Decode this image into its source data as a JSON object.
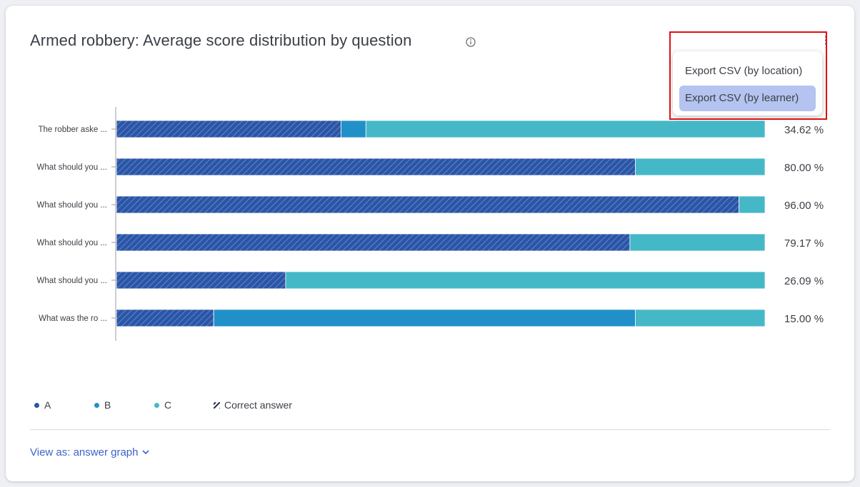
{
  "title": "Armed robbery: Average score distribution by question",
  "menu": {
    "items": [
      "Export CSV (by location)",
      "Export CSV (by learner)"
    ],
    "active_index": 1
  },
  "legend": {
    "items": [
      {
        "label": "A",
        "color": "#2a56a8"
      },
      {
        "label": "B",
        "color": "#2190c8"
      },
      {
        "label": "C",
        "color": "#45b8c7"
      }
    ],
    "correct_label": "Correct answer"
  },
  "view_as": "View as: answer graph",
  "icons": {
    "info": "info-icon",
    "menu": "kebab-menu-icon",
    "chevron": "chevron-down-icon"
  },
  "chart_data": {
    "type": "bar",
    "orientation": "horizontal",
    "stacked": true,
    "normalized": true,
    "categories": [
      "The robber aske ...",
      "What should you ...",
      "What should you ...",
      "What should you ...",
      "What should you ...",
      "What was the ro ..."
    ],
    "series": [
      {
        "name": "A",
        "color": "#2a56a8",
        "values": [
          34.62,
          80.0,
          96.0,
          79.17,
          26.09,
          15.0
        ]
      },
      {
        "name": "B",
        "color": "#2190c8",
        "values": [
          3.85,
          0,
          0,
          0,
          0,
          65.0
        ]
      },
      {
        "name": "C",
        "color": "#45b8c7",
        "values": [
          61.53,
          20.0,
          4.0,
          20.83,
          73.91,
          20.0
        ]
      }
    ],
    "correct_series": "A",
    "value_labels": [
      "34.62 %",
      "80.00 %",
      "96.00 %",
      "79.17 %",
      "26.09 %",
      "15.00 %"
    ],
    "xlim": [
      0,
      100
    ]
  }
}
